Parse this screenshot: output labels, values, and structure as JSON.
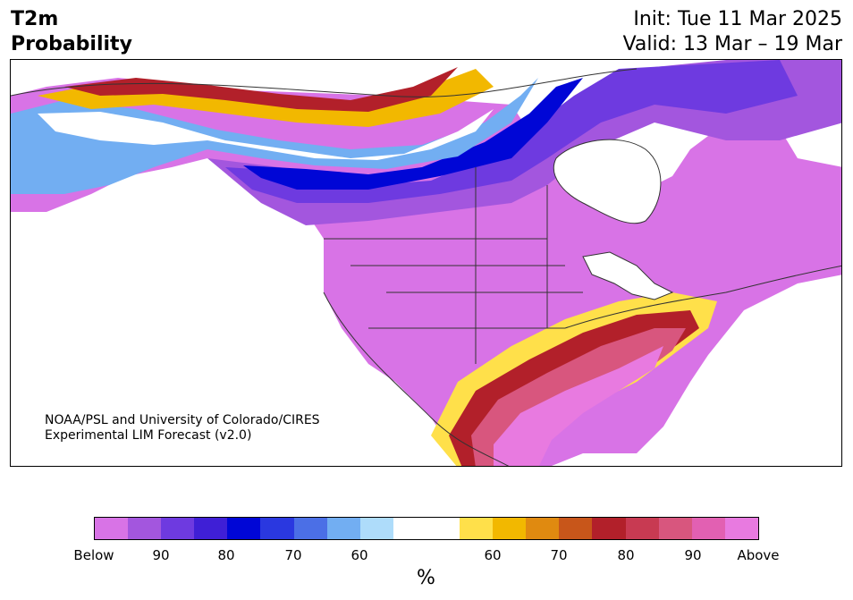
{
  "header": {
    "variable_line1": "T2m",
    "variable_line2": "Probability",
    "init_line": "Init: Tue 11 Mar 2025",
    "valid_line": "Valid: 13 Mar – 19 Mar"
  },
  "credit": {
    "line1": "NOAA/PSL and University of Colorado/CIRES",
    "line2": "Experimental LIM Forecast (v2.0)"
  },
  "colorbar": {
    "unit": "%",
    "colors": [
      "#d873e6",
      "#a356de",
      "#6e3ae0",
      "#3f1fd6",
      "#0006d6",
      "#2a38e0",
      "#4b6fe6",
      "#72aef2",
      "#aedcfa",
      "#ffffff",
      "#ffffff",
      "#ffe04a",
      "#f2b800",
      "#e08a10",
      "#c8561a",
      "#b2202a",
      "#c83a52",
      "#d8567e",
      "#e260b2",
      "#e87ae0"
    ],
    "tick_labels": [
      "Below",
      "90",
      "80",
      "70",
      "60",
      "60",
      "70",
      "80",
      "90",
      "Above"
    ]
  },
  "map": {
    "colors": {
      "below_strong": "#d873e6",
      "below_90": "#a356de",
      "below_80": "#6e3ae0",
      "below_75": "#3f1fd6",
      "below_70": "#0006d6",
      "below_65": "#2a38e0",
      "below_60": "#72aef2",
      "near_normal": "#ffffff",
      "above_60": "#ffe04a",
      "above_65": "#f2b800",
      "above_70": "#e08a10",
      "above_75": "#c8561a",
      "above_80": "#b2202a",
      "above_85": "#c83a52",
      "above_90": "#d8567e",
      "above_strong": "#e87ae0"
    }
  }
}
